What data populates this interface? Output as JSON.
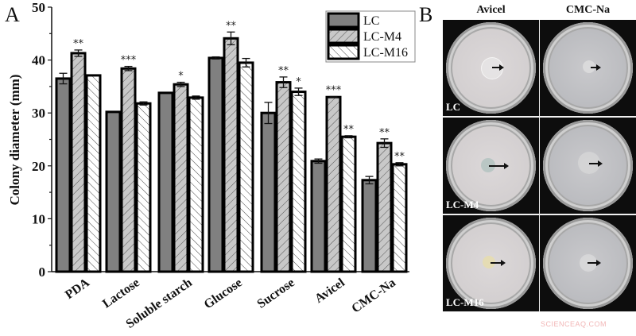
{
  "panels": {
    "a_label": "A",
    "b_label": "B"
  },
  "chart_data": {
    "type": "bar",
    "title": "",
    "xlabel": "",
    "ylabel": "Colony diameter (mm)",
    "ylim": [
      0,
      50
    ],
    "yticks": [
      0,
      10,
      20,
      30,
      40,
      50
    ],
    "grid": false,
    "legend_position": "top-right",
    "categories": [
      "PDA",
      "Lactose",
      "Soluble starch",
      "Glucose",
      "Sucrose",
      "Avicel",
      "CMC-Na"
    ],
    "series": [
      {
        "name": "LC",
        "pattern": "solid-gray",
        "fill": "#808080",
        "values": [
          36.5,
          30.2,
          33.8,
          40.4,
          30.0,
          20.9,
          17.3
        ],
        "errors": [
          1.0,
          0.0,
          0.0,
          0.2,
          2.0,
          0.4,
          0.7
        ],
        "significance": [
          "",
          "",
          "",
          "",
          "",
          "",
          ""
        ]
      },
      {
        "name": "LC-M4",
        "pattern": "forward-hatch-light-gray",
        "fill": "#c8c8c8",
        "values": [
          41.3,
          38.4,
          35.4,
          44.1,
          35.8,
          33.0,
          24.3
        ],
        "errors": [
          0.6,
          0.4,
          0.4,
          1.2,
          1.0,
          0.1,
          0.8
        ],
        "significance": [
          "**",
          "***",
          "*",
          "**",
          "**",
          "***",
          "**"
        ]
      },
      {
        "name": "LC-M16",
        "pattern": "back-hatch-white",
        "fill": "#ffffff",
        "values": [
          37.1,
          31.8,
          32.9,
          39.5,
          34.0,
          25.5,
          20.3
        ],
        "errors": [
          0.0,
          0.3,
          0.3,
          0.8,
          0.7,
          0.2,
          0.3
        ],
        "significance": [
          "",
          "",
          "",
          "",
          "*",
          "**",
          "**"
        ]
      }
    ]
  },
  "photo_panel": {
    "columns": [
      "Avicel",
      "CMC-Na"
    ],
    "rows": [
      "LC",
      "LC-M4",
      "LC-M16"
    ]
  },
  "watermark": "SCIENCEAQ.COM"
}
